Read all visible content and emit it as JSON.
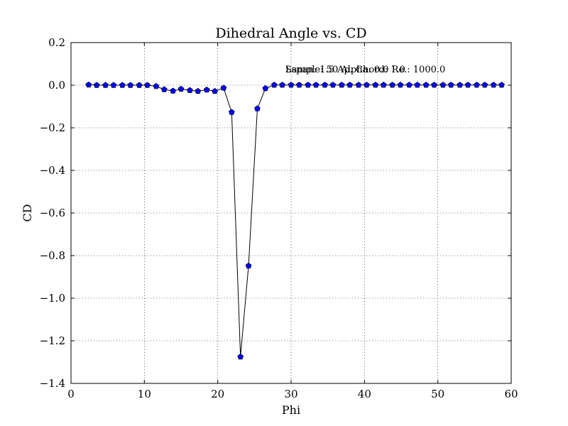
{
  "chart_data": {
    "type": "line",
    "title": "Dihedral Angle vs. CD",
    "xlabel": "Phi",
    "ylabel": "CD",
    "xlim": [
      0,
      60
    ],
    "ylim": [
      -1.4,
      0.2
    ],
    "xticks": [
      "0",
      "10",
      "20",
      "30",
      "40",
      "50",
      "60"
    ],
    "yticks": [
      "0.2",
      "0.0",
      "−0.2",
      "−0.4",
      "−0.6",
      "−0.8",
      "−1.0",
      "−1.2",
      "−1.4"
    ],
    "grid": true,
    "annotations": [
      "Sample: 50  Alpha: 0.0  Re.: 1000.0",
      "Lspan: 1.5  Ap. Chord: 1.0"
    ],
    "series": [
      {
        "color": "#0000ff",
        "line_color": "#000000",
        "marker": "pentagon",
        "x": [
          2.4,
          3.5,
          4.7,
          5.8,
          7.0,
          8.1,
          9.3,
          10.4,
          11.6,
          12.7,
          13.9,
          15.0,
          16.2,
          17.3,
          18.5,
          19.6,
          20.8,
          21.9,
          23.1,
          24.2,
          25.4,
          26.5,
          27.7,
          28.8,
          30.0,
          31.1,
          32.3,
          33.4,
          34.6,
          35.7,
          36.9,
          38.0,
          39.2,
          40.3,
          41.5,
          42.6,
          43.8,
          44.9,
          46.1,
          47.2,
          48.4,
          49.5,
          50.7,
          51.8,
          53.0,
          54.1,
          55.3,
          56.4,
          57.6,
          58.7
        ],
        "y": [
          0.002,
          0.0,
          0.0,
          0.0,
          0.0,
          0.0,
          0.0,
          0.0,
          -0.005,
          -0.02,
          -0.027,
          -0.018,
          -0.024,
          -0.028,
          -0.022,
          -0.028,
          -0.013,
          -0.127,
          -1.275,
          -0.848,
          -0.11,
          -0.015,
          0.001,
          0.001,
          0.001,
          0.001,
          0.001,
          0.001,
          0.001,
          0.001,
          0.001,
          0.001,
          0.001,
          0.001,
          0.001,
          0.001,
          0.001,
          0.001,
          0.001,
          0.001,
          0.001,
          0.001,
          0.001,
          0.001,
          0.001,
          0.001,
          0.001,
          0.001,
          0.001,
          0.001
        ]
      }
    ]
  }
}
